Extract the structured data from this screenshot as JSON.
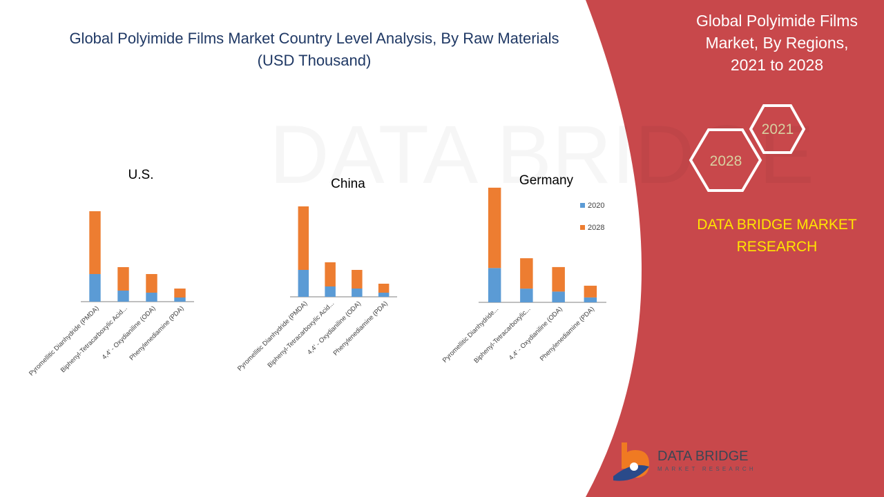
{
  "page": {
    "title_line1": "Global Polyimide Films Market Country Level Analysis, By Raw Materials",
    "title_line2": "(USD Thousand)"
  },
  "sidebar": {
    "title_line1": "Global Polyimide Films",
    "title_line2": "Market, By Regions,",
    "title_line3": "2021 to 2028",
    "hex_year_top": "2021",
    "hex_year_bottom": "2028",
    "brand_line1": "DATA BRIDGE MARKET",
    "brand_line2": "RESEARCH"
  },
  "logo": {
    "name": "DATA BRIDGE",
    "subtitle": "MARKET RESEARCH"
  },
  "colors": {
    "series_2020": "#5b9bd5",
    "series_2028": "#ed7d31",
    "panel_red": "#c8484b",
    "title_blue": "#1f3864",
    "brand_yellow": "#ffe600"
  },
  "chart_data": [
    {
      "type": "bar",
      "stacked": true,
      "title": "U.S.",
      "categories": [
        "Pyromellitic Dianhydride (PMDA)",
        "Biphenyl-Tetracarboxylic Acid...",
        "4,4' - Oxydianiline (ODA)",
        "Phenylenediamine (PDA)"
      ],
      "series": [
        {
          "name": "2020",
          "values": [
            40,
            16,
            13,
            6
          ]
        },
        {
          "name": "2028",
          "values": [
            91,
            34,
            27,
            13
          ]
        }
      ],
      "legend": "none",
      "grid": false
    },
    {
      "type": "bar",
      "stacked": true,
      "title": "China",
      "categories": [
        "Pyromellitic Dianhydride (PMDA)",
        "Biphenyl-Tetracarboxylic Acid...",
        "4,4' - Oxydianiline (ODA)",
        "Phenylenediamine (PDA)"
      ],
      "series": [
        {
          "name": "2020",
          "values": [
            39,
            15,
            12,
            6
          ]
        },
        {
          "name": "2028",
          "values": [
            92,
            35,
            27,
            13
          ]
        }
      ],
      "legend": "none",
      "grid": false
    },
    {
      "type": "bar",
      "stacked": true,
      "title": "Germany",
      "categories": [
        "Pyromellitic Dianhydride...",
        "Biphenyl-Tetracarboxylic...",
        "4,4' - Oxydianiline (ODA)",
        "Phenylenediamine (PDA)"
      ],
      "series": [
        {
          "name": "2020",
          "values": [
            35,
            14,
            11,
            5
          ]
        },
        {
          "name": "2028",
          "values": [
            82,
            31,
            25,
            12
          ]
        }
      ],
      "legend": "right",
      "grid": false
    }
  ]
}
